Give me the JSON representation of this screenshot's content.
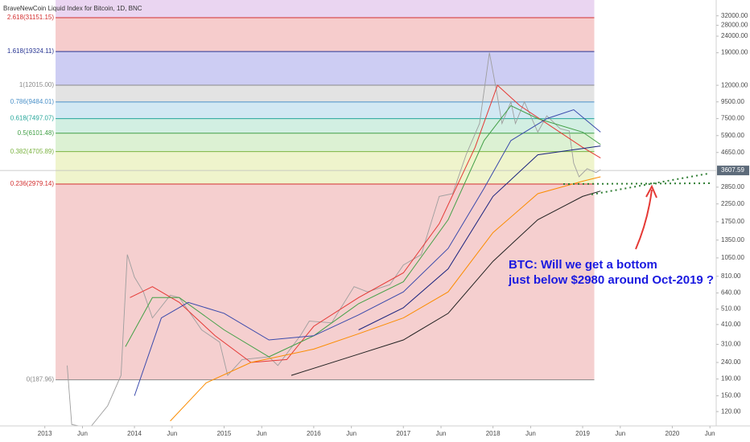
{
  "chart_data": {
    "type": "line",
    "title": "BraveNewCoin Liquid Index for Bitcoin, 1D, BNC",
    "log_scale": true,
    "xlim": [
      2012.5,
      2020.49
    ],
    "ylim": [
      98,
      40000
    ],
    "xticks": [
      2013,
      {
        "value": 2013.42,
        "label": "Jun"
      },
      2014,
      {
        "value": 2014.42,
        "label": "Jun"
      },
      2015,
      {
        "value": 2015.42,
        "label": "Jun"
      },
      2016,
      {
        "value": 2016.42,
        "label": "Jun"
      },
      2017,
      {
        "value": 2017.42,
        "label": "Jun"
      },
      2018,
      {
        "value": 2018.42,
        "label": "Jun"
      },
      2019,
      {
        "value": 2019.42,
        "label": "Jun"
      },
      2020,
      {
        "value": 2020.42,
        "label": "Jun"
      }
    ],
    "yticks": [
      {
        "value": 32000,
        "label": "32000.00"
      },
      {
        "value": 28000,
        "label": "28000.00"
      },
      {
        "value": 24000,
        "label": "24000.00"
      },
      {
        "value": 19000,
        "label": "19000.00"
      },
      {
        "value": 12000,
        "label": "12000.00"
      },
      {
        "value": 9500,
        "label": "9500.00"
      },
      {
        "value": 7500,
        "label": "7500.00"
      },
      {
        "value": 5900,
        "label": "5900.00"
      },
      {
        "value": 4650,
        "label": "4650.00"
      },
      {
        "value": 2850,
        "label": "2850.00"
      },
      {
        "value": 2250,
        "label": "2250.00"
      },
      {
        "value": 1750,
        "label": "1750.00"
      },
      {
        "value": 1350,
        "label": "1350.00"
      },
      {
        "value": 1050,
        "label": "1050.00"
      },
      {
        "value": 810,
        "label": "810.00"
      },
      {
        "value": 640,
        "label": "640.00"
      },
      {
        "value": 510,
        "label": "510.00"
      },
      {
        "value": 410,
        "label": "410.00"
      },
      {
        "value": 310,
        "label": "310.00"
      },
      {
        "value": 240,
        "label": "240.00"
      },
      {
        "value": 190,
        "label": "190.00"
      },
      {
        "value": 150,
        "label": "150.00"
      },
      {
        "value": 120,
        "label": "120.00"
      }
    ],
    "last_price": 3607.59,
    "fib_xlim": [
      2013.12,
      2019.13
    ],
    "fib_top_fill": "#ead5f1",
    "fib_levels": [
      {
        "label": "2.618(31151.15)",
        "value": 31151.15,
        "color": "#d32f2f",
        "fill": "#f6cccc"
      },
      {
        "label": "1.618(19324.11)",
        "value": 19324.11,
        "color": "#283593",
        "fill": "#cdcdf3"
      },
      {
        "label": "1(12015.00)",
        "value": 12015.0,
        "color": "#8a8a8a",
        "fill": "#e3e3e3"
      },
      {
        "label": "0.786(9484.01)",
        "value": 9484.01,
        "color": "#4a90c8",
        "fill": "#d2e8f3"
      },
      {
        "label": "0.618(7497.07)",
        "value": 7497.07,
        "color": "#26a69a",
        "fill": "#d2efe2"
      },
      {
        "label": "0.5(6101.48)",
        "value": 6101.48,
        "color": "#43a047",
        "fill": "#dcf1d3"
      },
      {
        "label": "0.382(4705.89)",
        "value": 4705.89,
        "color": "#7cb342",
        "fill": "#eff4cc"
      },
      {
        "label": "0.236(2979.14)",
        "value": 2979.14,
        "color": "#d32f2f",
        "fill": "#f5cfcf"
      },
      {
        "label": "0(187.96)",
        "value": 187.96,
        "color": "#888888",
        "fill": "none"
      }
    ],
    "series": [
      {
        "color": "#9e9e9e",
        "x": [
          2013.25,
          2013.3,
          2013.5,
          2013.7,
          2013.85,
          2013.92,
          2014.0,
          2014.1,
          2014.2,
          2014.4,
          2014.5,
          2014.6,
          2014.75,
          2014.95,
          2015.04,
          2015.2,
          2015.5,
          2015.6,
          2015.85,
          2015.95,
          2016.2,
          2016.45,
          2016.6,
          2016.85,
          2017.0,
          2017.2,
          2017.4,
          2017.55,
          2017.7,
          2017.85,
          2017.96,
          2018.04,
          2018.1,
          2018.2,
          2018.25,
          2018.35,
          2018.5,
          2018.6,
          2018.75,
          2018.85,
          2018.9,
          2018.96,
          2019.05,
          2019.15,
          2019.2
        ],
        "values": [
          230,
          100,
          95,
          130,
          200,
          1100,
          800,
          650,
          450,
          620,
          600,
          500,
          380,
          320,
          200,
          250,
          260,
          230,
          350,
          430,
          420,
          700,
          650,
          720,
          950,
          1100,
          2500,
          2600,
          4500,
          7000,
          19000,
          11000,
          7000,
          9500,
          7000,
          9500,
          6200,
          7800,
          6500,
          6300,
          4000,
          3300,
          3700,
          3500,
          3650
        ]
      },
      {
        "color": "#e53935",
        "x": [
          2013.95,
          2014.2,
          2014.5,
          2014.9,
          2015.3,
          2015.7,
          2016.0,
          2016.5,
          2017.0,
          2017.4,
          2017.8,
          2018.05,
          2018.3,
          2018.6,
          2019.0,
          2019.2
        ],
        "values": [
          600,
          700,
          560,
          350,
          240,
          250,
          400,
          600,
          850,
          1700,
          5000,
          12000,
          9000,
          7000,
          5000,
          4300
        ]
      },
      {
        "color": "#43a047",
        "x": [
          2013.9,
          2014.2,
          2014.5,
          2015.0,
          2015.5,
          2016.0,
          2016.5,
          2017.0,
          2017.5,
          2017.9,
          2018.2,
          2018.5,
          2019.0,
          2019.2
        ],
        "values": [
          300,
          600,
          600,
          380,
          260,
          350,
          550,
          750,
          1800,
          5500,
          9000,
          7500,
          6200,
          5200
        ]
      },
      {
        "color": "#3949ab",
        "x": [
          2014.0,
          2014.3,
          2014.6,
          2015.0,
          2015.5,
          2016.0,
          2016.5,
          2017.0,
          2017.5,
          2017.9,
          2018.2,
          2018.6,
          2018.9,
          2019.2
        ],
        "values": [
          150,
          450,
          560,
          480,
          330,
          350,
          470,
          650,
          1200,
          2800,
          5500,
          7500,
          8500,
          6200
        ]
      },
      {
        "color": "#1a237e",
        "x": [
          2016.5,
          2017.0,
          2017.5,
          2018.0,
          2018.5,
          2019.2
        ],
        "values": [
          380,
          520,
          900,
          2500,
          4500,
          5100
        ]
      },
      {
        "color": "#fb8c00",
        "x": [
          2014.4,
          2014.8,
          2015.3,
          2016.0,
          2016.5,
          2017.0,
          2017.5,
          2018.0,
          2018.5,
          2019.0,
          2019.2
        ],
        "values": [
          105,
          180,
          240,
          290,
          360,
          450,
          650,
          1500,
          2600,
          3100,
          3300
        ]
      },
      {
        "color": "#212121",
        "x": [
          2015.75,
          2016.5,
          2017.0,
          2017.5,
          2018.0,
          2018.5,
          2019.0,
          2019.2
        ],
        "values": [
          200,
          270,
          330,
          480,
          1000,
          1800,
          2500,
          2700
        ]
      }
    ],
    "annotation": [
      "BTC: Will we get a bottom",
      "just below $2980 around Oct-2019 ?"
    ]
  }
}
